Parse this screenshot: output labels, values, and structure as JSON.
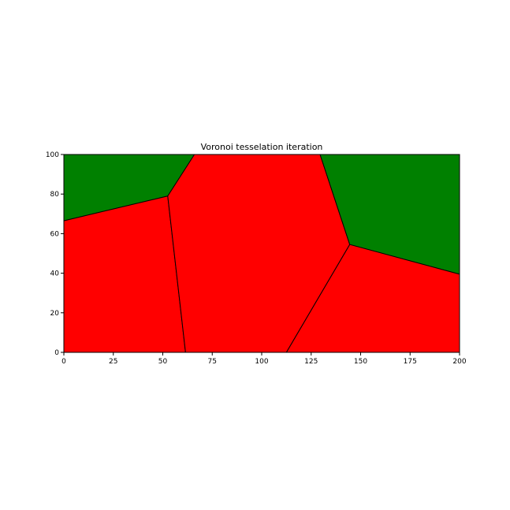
{
  "chart_data": {
    "type": "voronoi",
    "title": "Voronoi tesselation iteration",
    "xlabel": "",
    "ylabel": "",
    "xlim": [
      0,
      200
    ],
    "ylim": [
      0,
      100
    ],
    "xticks": [
      0,
      25,
      50,
      75,
      100,
      125,
      150,
      175,
      200
    ],
    "yticks": [
      0,
      20,
      40,
      60,
      80,
      100
    ],
    "grid": false,
    "edge_color": "#000000",
    "cells": [
      {
        "id": "cell-top-left",
        "color": "#008000",
        "polygon": [
          [
            0,
            100
          ],
          [
            66,
            100
          ],
          [
            52.5,
            79
          ],
          [
            0,
            66.5
          ]
        ]
      },
      {
        "id": "cell-left",
        "color": "#ff0000",
        "polygon": [
          [
            0,
            66.5
          ],
          [
            52.5,
            79
          ],
          [
            61.5,
            0
          ],
          [
            0,
            0
          ]
        ]
      },
      {
        "id": "cell-center",
        "color": "#ff0000",
        "polygon": [
          [
            66,
            100
          ],
          [
            129.5,
            100
          ],
          [
            144.5,
            54.5
          ],
          [
            112.5,
            0
          ],
          [
            61.5,
            0
          ],
          [
            52.5,
            79
          ]
        ]
      },
      {
        "id": "cell-top-right",
        "color": "#008000",
        "polygon": [
          [
            129.5,
            100
          ],
          [
            200,
            100
          ],
          [
            200,
            39.5
          ],
          [
            144.5,
            54.5
          ]
        ]
      },
      {
        "id": "cell-bottom-right",
        "color": "#ff0000",
        "polygon": [
          [
            144.5,
            54.5
          ],
          [
            200,
            39.5
          ],
          [
            200,
            0
          ],
          [
            112.5,
            0
          ]
        ]
      }
    ]
  }
}
